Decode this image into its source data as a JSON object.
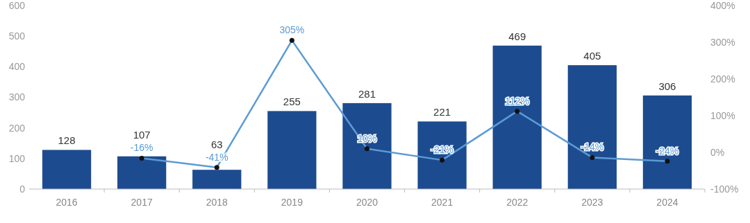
{
  "chart_data": {
    "type": "bar",
    "categories": [
      "2016",
      "2017",
      "2018",
      "2019",
      "2020",
      "2021",
      "2022",
      "2023",
      "2024"
    ],
    "series": [
      {
        "color": "#1d4b8f",
        "values": [
          128,
          107,
          63,
          255,
          281,
          221,
          469,
          405,
          306
        ],
        "data_labels": true
      },
      {
        "type": "line",
        "axis": "y2",
        "color": "#5b9bd5",
        "values": [
          null,
          -16,
          -41,
          305,
          10,
          -21,
          112,
          -14,
          -24
        ],
        "value_labels": [
          null,
          "-16%",
          "-41%",
          "305%",
          "10%",
          "-21%",
          "112%",
          "-14%",
          "-24%"
        ]
      }
    ],
    "ylim": [
      0,
      600
    ],
    "yticks": [
      0,
      100,
      200,
      300,
      400,
      500,
      600
    ],
    "y2lim": [
      -100,
      400
    ],
    "y2ticks": [
      {
        "value": -100,
        "label": "-100%"
      },
      {
        "value": 0,
        "label": "0%"
      },
      {
        "value": 100,
        "label": "100%"
      },
      {
        "value": 200,
        "label": "200%"
      },
      {
        "value": 300,
        "label": "300%"
      },
      {
        "value": 400,
        "label": "400%"
      }
    ],
    "grid": false,
    "marker": "circle",
    "line_style": "solid"
  }
}
